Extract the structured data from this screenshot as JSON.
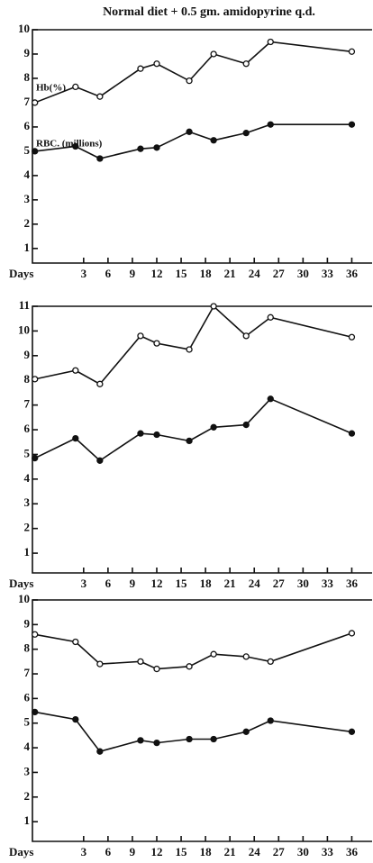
{
  "chart_data": [
    {
      "type": "line",
      "title": "Normal diet + 0.5 gm. amidopyrine q.d.",
      "x_label": "Days",
      "annotations": [
        "Hb(%)",
        "RBC. (millions)"
      ],
      "x": [
        -3,
        2,
        5,
        10,
        12,
        16,
        19,
        23,
        26,
        36
      ],
      "series": [
        {
          "color": "#111111",
          "marker": "open",
          "values": [
            7.0,
            7.65,
            7.25,
            8.4,
            8.6,
            7.9,
            9.0,
            8.6,
            9.5,
            9.1
          ]
        },
        {
          "color": "#111111",
          "marker": "filled",
          "values": [
            5.0,
            5.2,
            4.7,
            5.1,
            5.15,
            5.8,
            5.45,
            5.75,
            6.1,
            6.1
          ]
        }
      ],
      "xlim": [
        -3.3,
        38.5
      ],
      "xticks": [
        3,
        6,
        9,
        12,
        15,
        18,
        21,
        24,
        27,
        30,
        33,
        36
      ],
      "ylim": [
        0.4,
        10
      ],
      "yticks": [
        1,
        2,
        3,
        4,
        5,
        6,
        7,
        8,
        9,
        10
      ]
    },
    {
      "type": "line",
      "x_label": "Days",
      "x": [
        -3,
        2,
        5,
        10,
        12,
        16,
        19,
        23,
        26,
        36
      ],
      "series": [
        {
          "color": "#111111",
          "marker": "open",
          "values": [
            8.05,
            8.4,
            7.85,
            9.8,
            9.5,
            9.25,
            11.0,
            9.8,
            10.55,
            9.75
          ]
        },
        {
          "color": "#111111",
          "marker": "filled",
          "values": [
            4.85,
            5.65,
            4.75,
            5.85,
            5.8,
            5.55,
            6.1,
            6.2,
            7.25,
            5.85
          ]
        }
      ],
      "xlim": [
        -3.3,
        38.5
      ],
      "xticks": [
        3,
        6,
        9,
        12,
        15,
        18,
        21,
        24,
        27,
        30,
        33,
        36
      ],
      "ylim": [
        0.2,
        11
      ],
      "yticks": [
        1,
        2,
        3,
        4,
        5,
        6,
        7,
        8,
        9,
        10,
        11
      ]
    },
    {
      "type": "line",
      "x_label": "Days",
      "x": [
        -3,
        2,
        5,
        10,
        12,
        16,
        19,
        23,
        26,
        36
      ],
      "series": [
        {
          "color": "#111111",
          "marker": "open",
          "values": [
            8.6,
            8.3,
            7.4,
            7.5,
            7.2,
            7.3,
            7.8,
            7.7,
            7.5,
            8.65
          ]
        },
        {
          "color": "#111111",
          "marker": "filled",
          "values": [
            5.45,
            5.15,
            3.85,
            4.3,
            4.2,
            4.35,
            4.35,
            4.65,
            5.1,
            4.65
          ]
        }
      ],
      "xlim": [
        -3.3,
        38.5
      ],
      "xticks": [
        3,
        6,
        9,
        12,
        15,
        18,
        21,
        24,
        27,
        30,
        33,
        36
      ],
      "ylim": [
        0.2,
        10
      ],
      "yticks": [
        1,
        2,
        3,
        4,
        5,
        6,
        7,
        8,
        9,
        10
      ]
    }
  ]
}
